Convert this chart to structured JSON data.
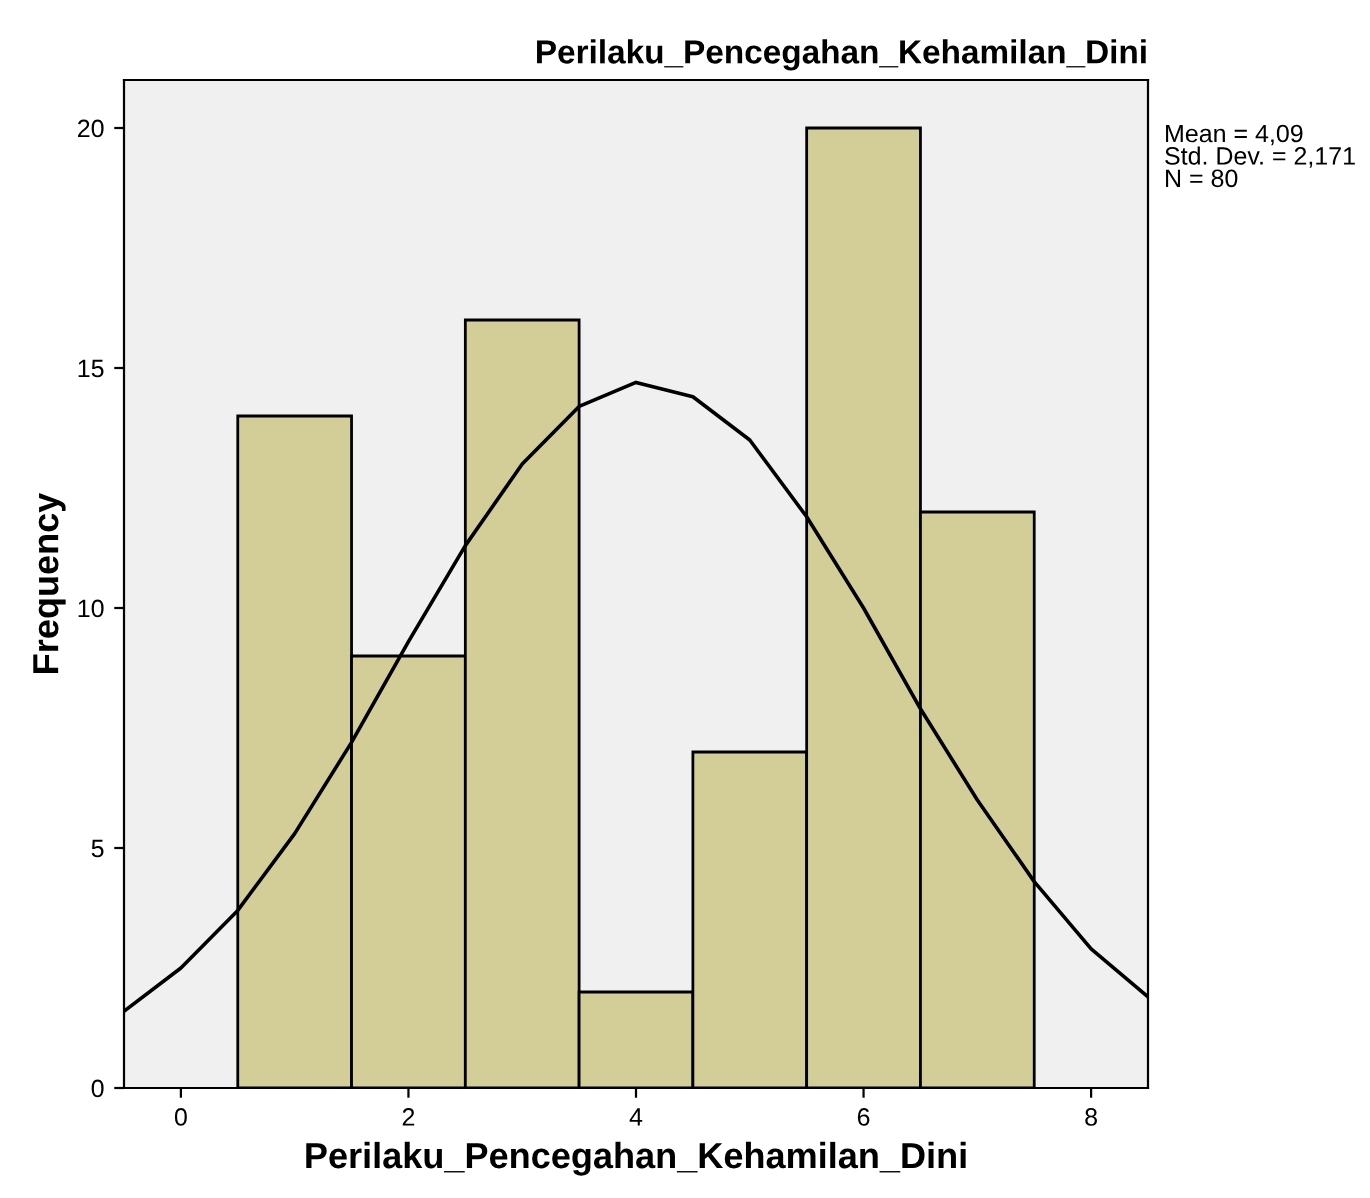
{
  "chart_data": {
    "type": "histogram",
    "title": "Perilaku_Pencegahan_Kehamilan_Dini",
    "xlabel": "Perilaku_Pencegahan_Kehamilan_Dini",
    "ylabel": "Frequency",
    "series": [
      {
        "color": "#d3ce97",
        "bins": [
          0.5,
          1.5,
          2.5,
          3.5,
          4.5,
          5.5,
          6.5,
          7.5
        ],
        "values": [
          14,
          9,
          16,
          2,
          7,
          20,
          12
        ]
      },
      {
        "type": "line",
        "color": "#000000",
        "x": [
          -0.5,
          0,
          0.5,
          1,
          1.5,
          2,
          2.5,
          3,
          3.5,
          4,
          4.5,
          5,
          5.5,
          6,
          6.5,
          7,
          7.5,
          8,
          8.5
        ],
        "values": [
          1.6,
          2.5,
          3.7,
          5.3,
          7.2,
          9.3,
          11.3,
          13.0,
          14.2,
          14.7,
          14.4,
          13.5,
          11.9,
          10.0,
          7.9,
          6.0,
          4.3,
          2.9,
          1.9
        ]
      }
    ],
    "xlim": [
      -0.5,
      8.5
    ],
    "ylim": [
      0,
      21
    ],
    "xticks": [
      0,
      2,
      4,
      6,
      8
    ],
    "yticks": [
      0,
      5,
      10,
      15,
      20
    ],
    "grid": false,
    "legend": false,
    "annotations": [
      "Mean = 4,09",
      "Std. Dev. = 2,171",
      "N = 80"
    ]
  }
}
